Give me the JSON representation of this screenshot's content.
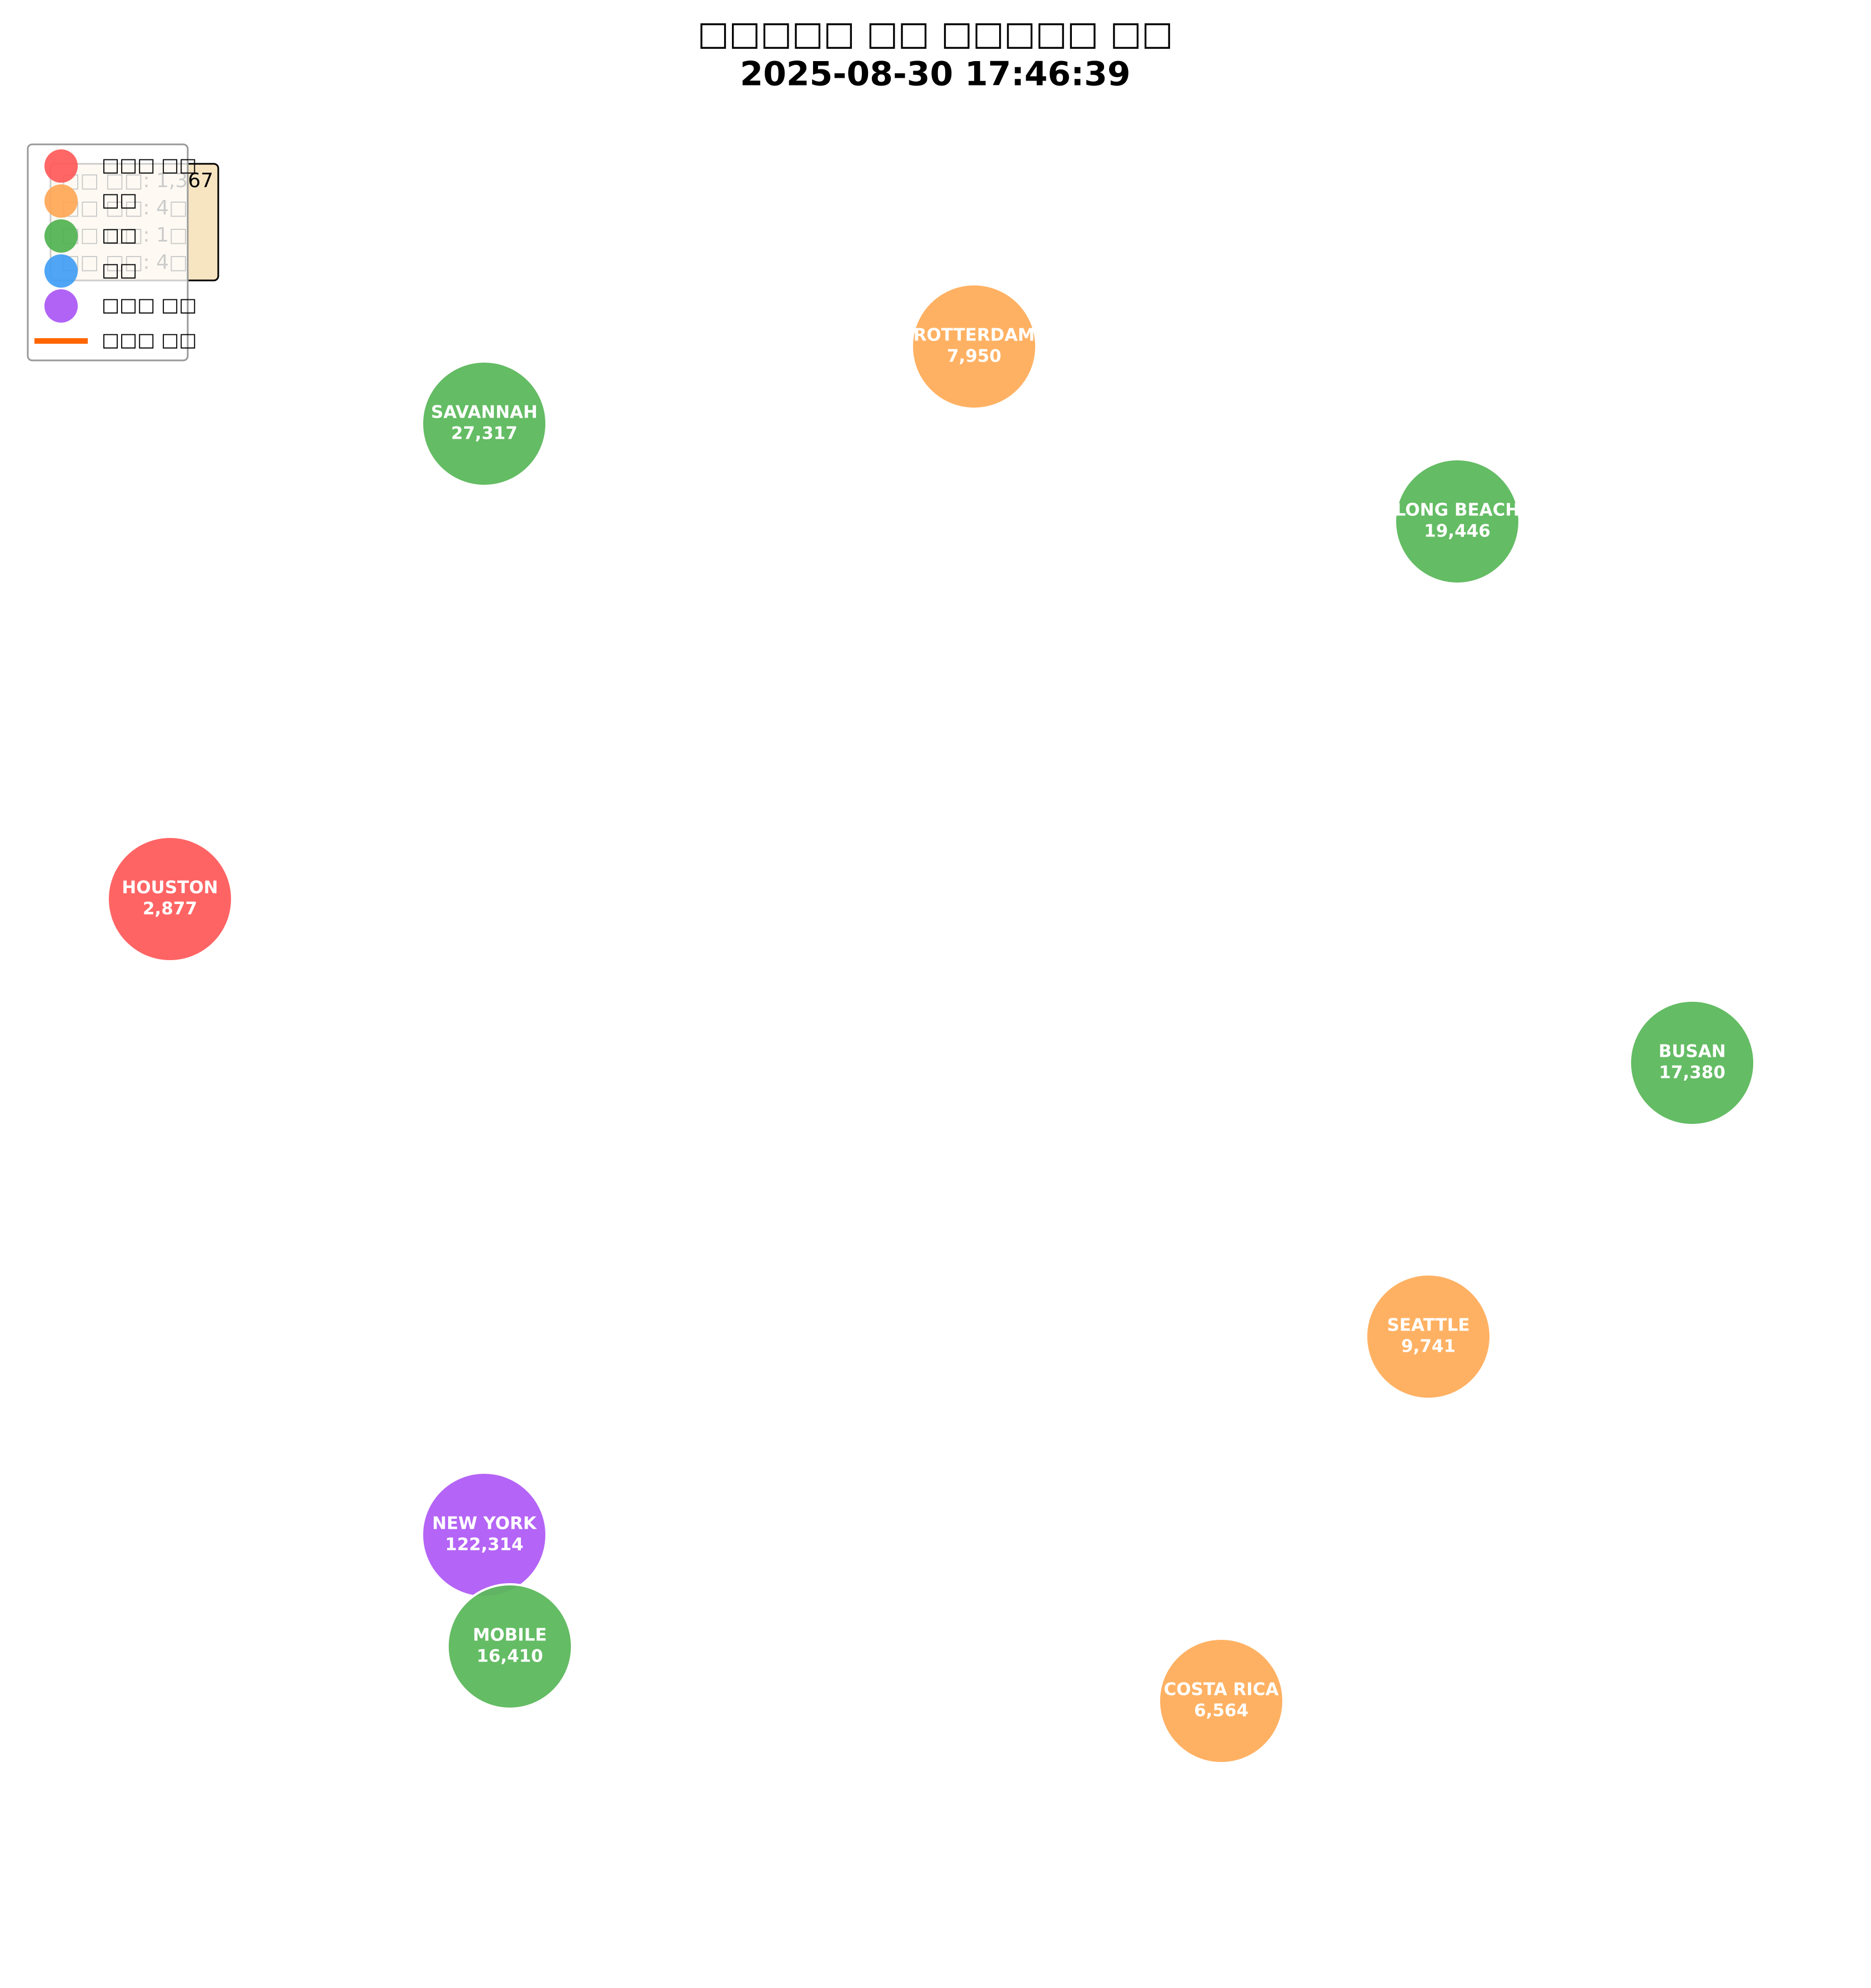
{
  "title": {
    "line1": "□□□□□ □□ □□□□□ □□",
    "line2": "2025-08-30 17:46:39"
  },
  "info": [
    "□□ □□: 1,367",
    "□□ □□: 4□",
    "□□ □□: 1□",
    "□□ □□: 4□"
  ],
  "legend": [
    {
      "label": "□□□ □□",
      "color": "#ff5555",
      "shape": "circle"
    },
    {
      "label": "□□",
      "color": "#ffa552",
      "shape": "circle"
    },
    {
      "label": "□□",
      "color": "#4cb04c",
      "shape": "circle"
    },
    {
      "label": "□□",
      "color": "#3d9cf5",
      "shape": "circle"
    },
    {
      "label": "□□□ □□",
      "color": "#a852f5",
      "shape": "circle"
    },
    {
      "label": "□□□ □□",
      "color": "#ff6600",
      "shape": "line"
    }
  ],
  "nodes": [
    {
      "label": "SAVANNAH",
      "value": "27,317",
      "color": "#5cb85c"
    },
    {
      "label": "ROTTERDAM",
      "value": "7,950",
      "color": "#ffad5b"
    },
    {
      "label": "LONG BEACH",
      "value": "19,446",
      "color": "#5cb85c"
    },
    {
      "label": "HOUSTON",
      "value": "2,877",
      "color": "#ff5c5c"
    },
    {
      "label": "BUSAN",
      "value": "17,380",
      "color": "#5cb85c"
    },
    {
      "label": "SEATTLE",
      "value": "9,741",
      "color": "#ffad5b"
    },
    {
      "label": "NEW YORK",
      "value": "122,314",
      "color": "#b05cf5"
    },
    {
      "label": "MOBILE",
      "value": "16,410",
      "color": "#5cb85c"
    },
    {
      "label": "COSTA RICA",
      "value": "6,564",
      "color": "#ffad5b"
    }
  ]
}
